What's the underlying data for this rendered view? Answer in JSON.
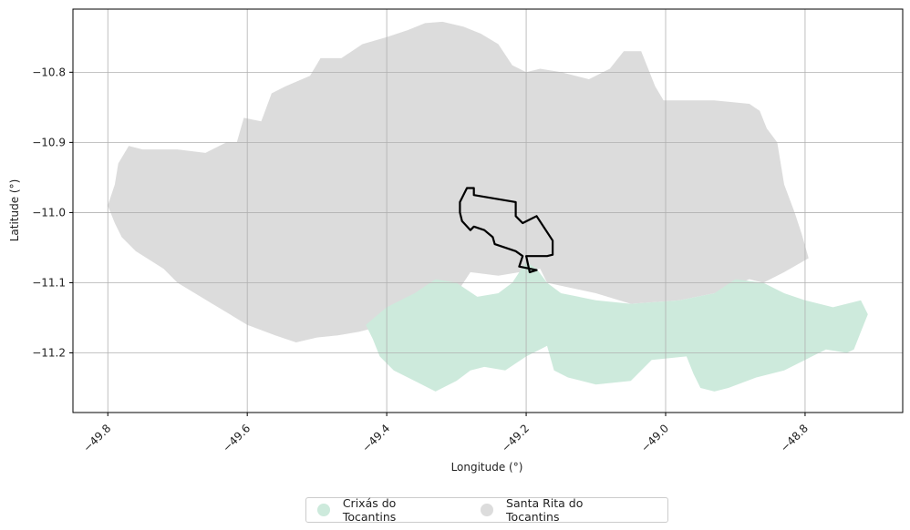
{
  "chart_data": {
    "type": "map",
    "xlabel": "Longitude (°)",
    "ylabel": "Latitude (°)",
    "xlim": [
      -49.85,
      -48.66
    ],
    "ylim": [
      -11.285,
      -10.71
    ],
    "xticks": [
      -49.8,
      -49.6,
      -49.4,
      -49.2,
      -49.0,
      -48.8
    ],
    "xtick_labels": [
      "−49.8",
      "−49.6",
      "−49.4",
      "−49.2",
      "−49.0",
      "−48.8"
    ],
    "yticks": [
      -10.8,
      -10.9,
      -11.0,
      -11.1,
      -11.2
    ],
    "ytick_labels": [
      "−10.8",
      "−10.9",
      "−11.0",
      "−11.1",
      "−11.2"
    ],
    "grid": true,
    "legend_position": "bottom-center",
    "regions": [
      {
        "name": "Santa Rita do Tocantins",
        "color": "#dcdcdc",
        "polygon": [
          [
            -49.8,
            -10.99
          ],
          [
            -49.79,
            -10.96
          ],
          [
            -49.785,
            -10.93
          ],
          [
            -49.77,
            -10.905
          ],
          [
            -49.75,
            -10.91
          ],
          [
            -49.72,
            -10.91
          ],
          [
            -49.7,
            -10.91
          ],
          [
            -49.66,
            -10.915
          ],
          [
            -49.63,
            -10.9
          ],
          [
            -49.615,
            -10.9
          ],
          [
            -49.605,
            -10.865
          ],
          [
            -49.58,
            -10.87
          ],
          [
            -49.565,
            -10.83
          ],
          [
            -49.545,
            -10.82
          ],
          [
            -49.51,
            -10.805
          ],
          [
            -49.495,
            -10.78
          ],
          [
            -49.465,
            -10.78
          ],
          [
            -49.435,
            -10.76
          ],
          [
            -49.4,
            -10.75
          ],
          [
            -49.37,
            -10.74
          ],
          [
            -49.345,
            -10.73
          ],
          [
            -49.32,
            -10.728
          ],
          [
            -49.29,
            -10.735
          ],
          [
            -49.265,
            -10.745
          ],
          [
            -49.24,
            -10.76
          ],
          [
            -49.22,
            -10.79
          ],
          [
            -49.2,
            -10.8
          ],
          [
            -49.18,
            -10.795
          ],
          [
            -49.15,
            -10.8
          ],
          [
            -49.11,
            -10.81
          ],
          [
            -49.08,
            -10.795
          ],
          [
            -49.06,
            -10.77
          ],
          [
            -49.035,
            -10.77
          ],
          [
            -49.015,
            -10.82
          ],
          [
            -49.003,
            -10.84
          ],
          [
            -48.93,
            -10.84
          ],
          [
            -48.88,
            -10.845
          ],
          [
            -48.865,
            -10.855
          ],
          [
            -48.855,
            -10.88
          ],
          [
            -48.84,
            -10.9
          ],
          [
            -48.83,
            -10.96
          ],
          [
            -48.815,
            -11.0
          ],
          [
            -48.805,
            -11.03
          ],
          [
            -48.795,
            -11.065
          ],
          [
            -48.83,
            -11.085
          ],
          [
            -48.86,
            -11.1
          ],
          [
            -48.88,
            -11.095
          ],
          [
            -48.93,
            -11.115
          ],
          [
            -48.98,
            -11.125
          ],
          [
            -49.05,
            -11.13
          ],
          [
            -49.1,
            -11.115
          ],
          [
            -49.17,
            -11.1
          ],
          [
            -49.18,
            -11.08
          ],
          [
            -49.24,
            -11.09
          ],
          [
            -49.28,
            -11.085
          ],
          [
            -49.3,
            -11.115
          ],
          [
            -49.35,
            -11.125
          ],
          [
            -49.4,
            -11.14
          ],
          [
            -49.42,
            -11.165
          ],
          [
            -49.44,
            -11.17
          ],
          [
            -49.47,
            -11.175
          ],
          [
            -49.5,
            -11.178
          ],
          [
            -49.53,
            -11.185
          ],
          [
            -49.56,
            -11.175
          ],
          [
            -49.6,
            -11.16
          ],
          [
            -49.65,
            -11.13
          ],
          [
            -49.7,
            -11.1
          ],
          [
            -49.72,
            -11.08
          ],
          [
            -49.76,
            -11.055
          ],
          [
            -49.78,
            -11.035
          ],
          [
            -49.79,
            -11.015
          ]
        ]
      },
      {
        "name": "Crixás do Tocantins",
        "color": "#cdeadc",
        "polygon": [
          [
            -49.43,
            -11.16
          ],
          [
            -49.4,
            -11.135
          ],
          [
            -49.36,
            -11.115
          ],
          [
            -49.33,
            -11.095
          ],
          [
            -49.3,
            -11.1
          ],
          [
            -49.27,
            -11.12
          ],
          [
            -49.24,
            -11.115
          ],
          [
            -49.22,
            -11.1
          ],
          [
            -49.2,
            -11.07
          ],
          [
            -49.185,
            -11.08
          ],
          [
            -49.17,
            -11.1
          ],
          [
            -49.15,
            -11.115
          ],
          [
            -49.1,
            -11.125
          ],
          [
            -49.05,
            -11.13
          ],
          [
            -48.98,
            -11.125
          ],
          [
            -48.93,
            -11.115
          ],
          [
            -48.9,
            -11.095
          ],
          [
            -48.86,
            -11.1
          ],
          [
            -48.83,
            -11.115
          ],
          [
            -48.8,
            -11.125
          ],
          [
            -48.76,
            -11.135
          ],
          [
            -48.72,
            -11.125
          ],
          [
            -48.71,
            -11.145
          ],
          [
            -48.72,
            -11.17
          ],
          [
            -48.73,
            -11.195
          ],
          [
            -48.74,
            -11.2
          ],
          [
            -48.77,
            -11.195
          ],
          [
            -48.8,
            -11.21
          ],
          [
            -48.83,
            -11.225
          ],
          [
            -48.87,
            -11.235
          ],
          [
            -48.91,
            -11.25
          ],
          [
            -48.93,
            -11.255
          ],
          [
            -48.95,
            -11.25
          ],
          [
            -48.96,
            -11.23
          ],
          [
            -48.97,
            -11.205
          ],
          [
            -49.02,
            -11.21
          ],
          [
            -49.05,
            -11.24
          ],
          [
            -49.1,
            -11.245
          ],
          [
            -49.14,
            -11.235
          ],
          [
            -49.16,
            -11.225
          ],
          [
            -49.17,
            -11.19
          ],
          [
            -49.2,
            -11.205
          ],
          [
            -49.23,
            -11.225
          ],
          [
            -49.26,
            -11.22
          ],
          [
            -49.28,
            -11.225
          ],
          [
            -49.3,
            -11.24
          ],
          [
            -49.33,
            -11.255
          ],
          [
            -49.36,
            -11.24
          ],
          [
            -49.39,
            -11.225
          ],
          [
            -49.41,
            -11.205
          ],
          [
            -49.42,
            -11.18
          ]
        ]
      }
    ],
    "outline": [
      [
        -49.285,
        -10.965
      ],
      [
        -49.275,
        -10.965
      ],
      [
        -49.275,
        -10.975
      ],
      [
        -49.215,
        -10.985
      ],
      [
        -49.215,
        -11.005
      ],
      [
        -49.205,
        -11.015
      ],
      [
        -49.195,
        -11.01
      ],
      [
        -49.185,
        -11.005
      ],
      [
        -49.162,
        -11.04
      ],
      [
        -49.162,
        -11.06
      ],
      [
        -49.17,
        -11.062
      ],
      [
        -49.2,
        -11.062
      ],
      [
        -49.195,
        -11.085
      ],
      [
        -49.185,
        -11.082
      ],
      [
        -49.21,
        -11.077
      ],
      [
        -49.205,
        -11.062
      ],
      [
        -49.215,
        -11.055
      ],
      [
        -49.245,
        -11.045
      ],
      [
        -49.248,
        -11.035
      ],
      [
        -49.26,
        -11.025
      ],
      [
        -49.275,
        -11.02
      ],
      [
        -49.28,
        -11.025
      ],
      [
        -49.292,
        -11.012
      ],
      [
        -49.295,
        -11.0
      ],
      [
        -49.295,
        -10.985
      ]
    ]
  },
  "legend": {
    "items": [
      {
        "label": "Crixás do Tocantins",
        "color": "#cdeadc"
      },
      {
        "label": "Santa Rita do Tocantins",
        "color": "#dcdcdc"
      }
    ]
  }
}
